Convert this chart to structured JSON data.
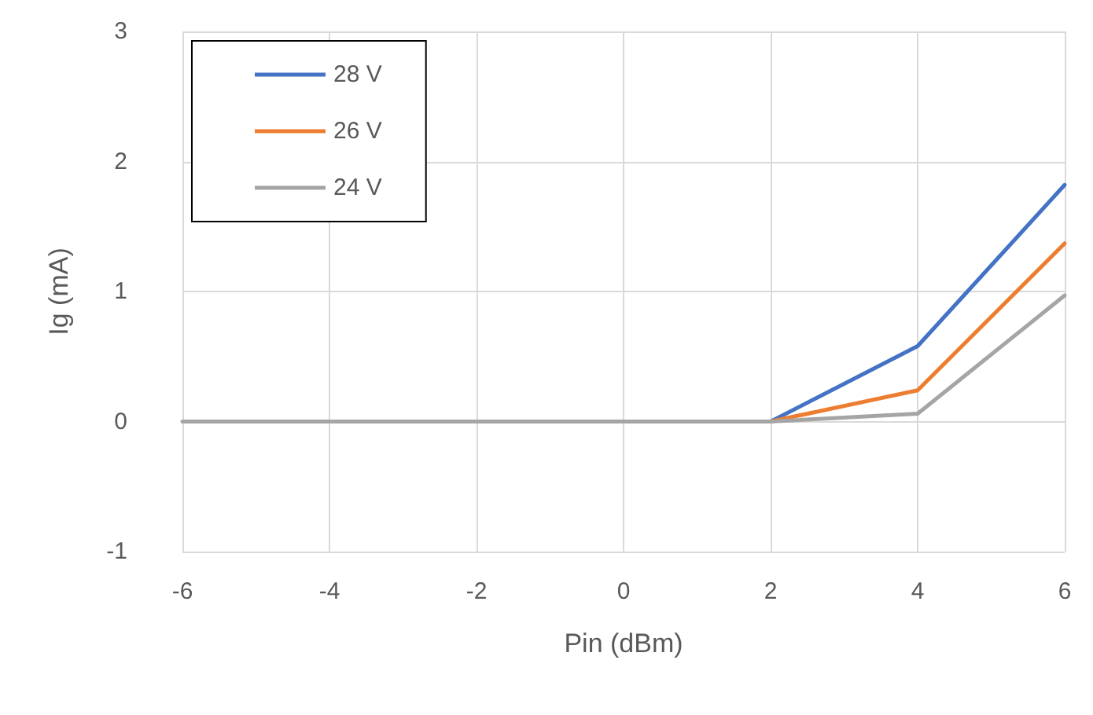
{
  "chart_data": {
    "type": "line",
    "xlabel": "Pin (dBm)",
    "ylabel": "Ig (mA)",
    "x": [
      -6,
      -4,
      -2,
      0,
      2,
      4,
      6
    ],
    "xlim": [
      -6,
      6
    ],
    "xticks": [
      -6,
      -4,
      -2,
      0,
      2,
      4,
      6
    ],
    "ylim": [
      -1,
      3
    ],
    "yticks": [
      -1,
      0,
      1,
      2,
      3
    ],
    "grid": true,
    "legend": "top left",
    "marker": "none",
    "line_style": "solid",
    "series": [
      {
        "name": "28 V",
        "color": "#4472c4",
        "values": [
          null,
          null,
          null,
          null,
          0,
          0.58,
          1.82
        ]
      },
      {
        "name": "26 V",
        "color": "#ed7d31",
        "values": [
          null,
          null,
          null,
          null,
          0,
          0.24,
          1.37
        ]
      },
      {
        "name": "24 V",
        "color": "#a5a5a5",
        "values": [
          0,
          0,
          0,
          0,
          0,
          0.06,
          0.97
        ]
      }
    ]
  }
}
